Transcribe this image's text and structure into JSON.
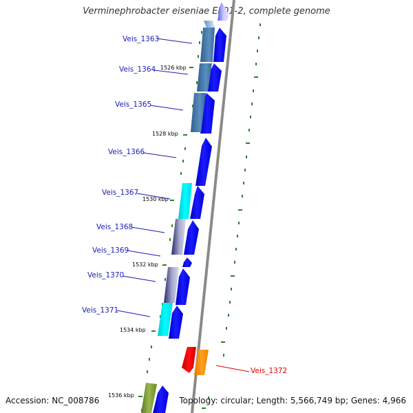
{
  "title": "Verminephrobacter eiseniae EF01-2, complete genome",
  "accession": "Accession: NC_008786",
  "topology": "Topology: circular; Length: 5,566,749 bp; Genes: 4,966",
  "colors": {
    "backbone": "#8a8a8a",
    "tick": "#2e7d2e",
    "cds_forward": "#0000ee",
    "label_blue": "#1a1ab8",
    "label_red": "#e00000"
  },
  "kbp_ticks": [
    "1526 kbp",
    "1528 kbp",
    "1530 kbp",
    "1532 kbp",
    "1534 kbp",
    "1536 kbp"
  ],
  "gene_labels": [
    {
      "name": "Veis_1363",
      "color": "blue"
    },
    {
      "name": "Veis_1364",
      "color": "blue"
    },
    {
      "name": "Veis_1365",
      "color": "blue"
    },
    {
      "name": "Veis_1366",
      "color": "blue"
    },
    {
      "name": "Veis_1367",
      "color": "blue"
    },
    {
      "name": "Veis_1368",
      "color": "blue"
    },
    {
      "name": "Veis_1369",
      "color": "blue"
    },
    {
      "name": "Veis_1370",
      "color": "blue"
    },
    {
      "name": "Veis_1371",
      "color": "blue"
    },
    {
      "name": "Veis_1372",
      "color": "red"
    }
  ]
}
